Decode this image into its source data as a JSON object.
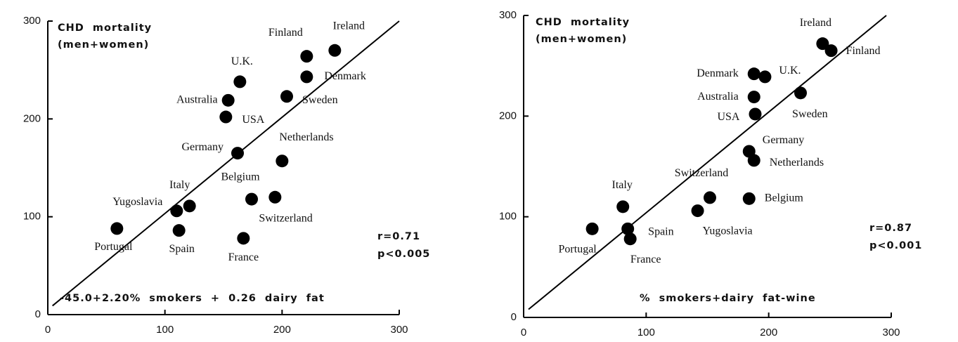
{
  "chart_data": [
    {
      "type": "scatter",
      "annotations": [
        "CHD mortality",
        "(men+women)",
        "r=0.71",
        "p<0.005",
        "-45.0+2.20% smokers + 0.26 dairy fat"
      ],
      "labels": [
        "Ireland",
        "Finland",
        "Denmark",
        "Sweden",
        "U.K.",
        "Australia",
        "USA",
        "Germany",
        "Netherlands",
        "Belgium",
        "Switzerland",
        "France",
        "Italy",
        "Yugoslavia",
        "Spain",
        "Portugal"
      ],
      "x": [
        245,
        221,
        221,
        204,
        164,
        154,
        152,
        162,
        200,
        174,
        194,
        167,
        121,
        110,
        112,
        59
      ],
      "y": [
        270,
        264,
        243,
        223,
        238,
        219,
        202,
        165,
        157,
        118,
        120,
        78,
        111,
        106,
        86,
        88
      ],
      "fit": {
        "x": [
          4,
          300
        ],
        "y": [
          9,
          300
        ]
      },
      "xlim": [
        0,
        300
      ],
      "ylim": [
        0,
        300
      ],
      "xticks": [
        0,
        100,
        200,
        300
      ],
      "yticks": [
        0,
        100,
        200,
        300
      ],
      "color": "#000000"
    },
    {
      "type": "scatter",
      "annotations": [
        "CHD mortality",
        "(men+women)",
        "r=0.87",
        "p<0.001",
        "% smokers+dairy fat-wine"
      ],
      "labels": [
        "Ireland",
        "Finland",
        "Denmark",
        "U.K.",
        "Australia",
        "USA",
        "Sweden",
        "Germany",
        "Netherlands",
        "Belgium",
        "Switzerland",
        "Yugoslavia",
        "Italy",
        "Spain",
        "France",
        "Portugal"
      ],
      "x": [
        244,
        251,
        188,
        197,
        188,
        189,
        226,
        184,
        188,
        184,
        152,
        142,
        81,
        85,
        87,
        56
      ],
      "y": [
        272,
        265,
        242,
        239,
        219,
        202,
        223,
        165,
        156,
        118,
        119,
        106,
        110,
        88,
        78,
        88
      ],
      "fit": {
        "x": [
          4,
          296
        ],
        "y": [
          8,
          300
        ]
      },
      "xlim": [
        0,
        300
      ],
      "ylim": [
        0,
        300
      ],
      "xticks": [
        0,
        100,
        200,
        300
      ],
      "yticks": [
        0,
        100,
        200,
        300
      ],
      "color": "#000000"
    }
  ]
}
